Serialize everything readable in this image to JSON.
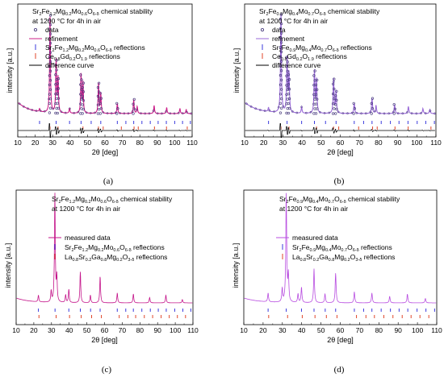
{
  "colors": {
    "data_marker": "#3c2e74",
    "refinement_line": "#cc1f8a",
    "refinement_line_b": "#9a6ad8",
    "difference_line": "#000000",
    "reflections_sfmo": "#3b3bdd",
    "reflections_second": "#e0462a",
    "measured_line_c": "#c4148a",
    "measured_line_d": "#b84de0"
  },
  "chart_data": [
    {
      "type": "line",
      "panel": "(a)",
      "title_parts": [
        "Sr",
        "2",
        "Fe",
        "1.2",
        "Mg",
        "0.2",
        "Mo",
        "0.6",
        "O",
        "6-δ",
        " chemical stability"
      ],
      "title_line2": "at 1200 °C for 4h in air",
      "xlabel": "2θ [deg]",
      "ylabel": "intensity [a.u.]",
      "xlim": [
        10,
        110
      ],
      "xticks": [
        "10",
        "20",
        "30",
        "40",
        "50",
        "60",
        "70",
        "80",
        "90",
        "100",
        "110"
      ],
      "legend": [
        {
          "kind": "marker",
          "label": "data"
        },
        {
          "kind": "line",
          "label": "refinement"
        },
        {
          "kind": "tick",
          "color": "blue",
          "parts": [
            "Sr",
            "2",
            "Fe",
            "1.2",
            "Mg",
            "0.2",
            "Mo",
            "0.6",
            "O",
            "6-δ",
            " reflections"
          ]
        },
        {
          "kind": "tick",
          "color": "red",
          "parts": [
            "Ce",
            "0.8",
            "Gd",
            "0.2",
            "O",
            "1.9",
            " reflections"
          ]
        },
        {
          "kind": "line",
          "label": "difference curve"
        }
      ],
      "peaks": [
        [
          22.5,
          0.03
        ],
        [
          28.5,
          0.96
        ],
        [
          32.0,
          0.52
        ],
        [
          33.1,
          0.34
        ],
        [
          39.7,
          0.05
        ],
        [
          46.3,
          0.38
        ],
        [
          47.4,
          0.3
        ],
        [
          56.3,
          0.3
        ],
        [
          57.6,
          0.2
        ],
        [
          67.1,
          0.1
        ],
        [
          76.5,
          0.14
        ],
        [
          78.5,
          0.07
        ],
        [
          88.2,
          0.08
        ],
        [
          95.4,
          0.06
        ],
        [
          103.0,
          0.05
        ],
        [
          106.6,
          0.04
        ]
      ],
      "reflections_blue": [
        22.5,
        32.0,
        39.7,
        46.3,
        52.1,
        57.6,
        67.1,
        72.0,
        76.5,
        81.2,
        86.0,
        90.5,
        95.2,
        100.0,
        104.5,
        109.0
      ],
      "reflections_red": [
        28.5,
        33.1,
        47.4,
        56.3,
        59.0,
        69.4,
        76.7,
        79.1,
        88.4,
        95.3,
        107.2
      ]
    },
    {
      "type": "line",
      "panel": "(b)",
      "title_parts": [
        "Sr",
        "2",
        "Fe",
        "0.9",
        "Mg",
        "0.4",
        "Mo",
        "0.7",
        "O",
        "6-δ",
        " chemical stability"
      ],
      "title_line2": "at 1200 °C for 4h in air",
      "xlabel": "2θ [deg]",
      "ylabel": "intensity [a.u.]",
      "xlim": [
        10,
        110
      ],
      "xticks": [
        "10",
        "20",
        "30",
        "40",
        "50",
        "60",
        "70",
        "80",
        "90",
        "100",
        "110"
      ],
      "legend": [
        {
          "kind": "marker",
          "label": "data"
        },
        {
          "kind": "line",
          "label": "refinement"
        },
        {
          "kind": "tick",
          "color": "blue",
          "parts": [
            "Sr",
            "2",
            "Fe",
            "0.9",
            "Mg",
            "0.4",
            "Mo",
            "0.7",
            "O",
            "6-δ",
            " reflections"
          ]
        },
        {
          "kind": "tick",
          "color": "red",
          "parts": [
            "Ce",
            "0.8",
            "Gd",
            "0.2",
            "O",
            "1.9",
            " reflections"
          ]
        },
        {
          "kind": "line",
          "label": "difference curve"
        }
      ],
      "peaks": [
        [
          22.5,
          0.04
        ],
        [
          29.0,
          0.97
        ],
        [
          32.2,
          0.55
        ],
        [
          33.2,
          0.38
        ],
        [
          39.8,
          0.06
        ],
        [
          46.5,
          0.42
        ],
        [
          47.6,
          0.33
        ],
        [
          56.5,
          0.34
        ],
        [
          57.8,
          0.22
        ],
        [
          67.3,
          0.1
        ],
        [
          76.6,
          0.15
        ],
        [
          78.7,
          0.08
        ],
        [
          88.4,
          0.09
        ],
        [
          95.6,
          0.07
        ],
        [
          103.2,
          0.05
        ],
        [
          106.8,
          0.04
        ]
      ],
      "reflections_blue": [
        22.5,
        32.2,
        39.8,
        46.5,
        52.3,
        57.8,
        67.3,
        72.2,
        76.6,
        81.4,
        86.2,
        90.7,
        95.4,
        100.2,
        104.7,
        109.2
      ],
      "reflections_red": [
        29.0,
        33.2,
        47.6,
        56.5,
        59.2,
        69.6,
        76.9,
        79.3,
        88.6,
        95.5,
        107.4
      ]
    },
    {
      "type": "line",
      "panel": "(c)",
      "title_parts": [
        "Sr",
        "2",
        "Fe",
        "1.2",
        "Mg",
        "0.2",
        "Mo",
        "0.6",
        "O",
        "6-δ",
        " chemical stability"
      ],
      "title_line2": "at 1200 °C for 4h in air",
      "xlabel": "2θ [deg]",
      "ylabel": "intensity [a.u.]",
      "xlim": [
        10,
        110
      ],
      "xticks": [
        "10",
        "20",
        "30",
        "40",
        "50",
        "60",
        "70",
        "80",
        "90",
        "100",
        "110"
      ],
      "legend": [
        {
          "kind": "line",
          "label": "measured data"
        },
        {
          "kind": "tick",
          "color": "blue",
          "parts": [
            "Sr",
            "2",
            "Fe",
            "1.2",
            "Mg",
            "0.2",
            "Mo",
            "0.6",
            "O",
            "6-δ",
            " reflections"
          ]
        },
        {
          "kind": "tick",
          "color": "red",
          "parts": [
            "La",
            "0.8",
            "Sr",
            "0.2",
            "Ga",
            "0.8",
            "Mg",
            "0.2",
            "O",
            "3-δ",
            " reflections"
          ]
        }
      ],
      "peaks": [
        [
          22.6,
          0.06
        ],
        [
          29.8,
          0.1
        ],
        [
          31.9,
          0.98
        ],
        [
          33.0,
          0.22
        ],
        [
          38.0,
          0.07
        ],
        [
          39.8,
          0.12
        ],
        [
          46.3,
          0.28
        ],
        [
          52.0,
          0.07
        ],
        [
          57.5,
          0.24
        ],
        [
          67.2,
          0.09
        ],
        [
          76.3,
          0.08
        ],
        [
          85.5,
          0.05
        ],
        [
          94.7,
          0.07
        ],
        [
          104.0,
          0.03
        ]
      ],
      "reflections_blue": [
        22.6,
        32.0,
        39.8,
        46.3,
        52.1,
        57.5,
        67.2,
        72.0,
        76.3,
        81.1,
        85.9,
        90.4,
        94.9,
        99.7,
        104.3,
        108.8
      ],
      "reflections_red": [
        22.9,
        32.6,
        40.2,
        46.8,
        52.7,
        58.2,
        68.3,
        73.2,
        77.6,
        82.5,
        87.2,
        92.0,
        96.6,
        101.2,
        105.8
      ]
    },
    {
      "type": "line",
      "panel": "(d)",
      "title_parts": [
        "Sr",
        "2",
        "Fe",
        "0.9",
        "Mg",
        "0.4",
        "Mo",
        "0.7",
        "O",
        "6-δ",
        " chemical stability"
      ],
      "title_line2": "at 1200 °C for 4h in air",
      "xlabel": "2θ [deg]",
      "ylabel": "intensity [a.u.]",
      "xlim": [
        10,
        110
      ],
      "xticks": [
        "10",
        "20",
        "30",
        "40",
        "50",
        "60",
        "70",
        "80",
        "90",
        "100",
        "110"
      ],
      "legend": [
        {
          "kind": "line",
          "label": "measured data"
        },
        {
          "kind": "tick",
          "color": "blue",
          "parts": [
            "Sr",
            "2",
            "Fe",
            "0.9",
            "Mg",
            "0.4",
            "Mo",
            "0.7",
            "O",
            "6-δ",
            " reflections"
          ]
        },
        {
          "kind": "tick",
          "color": "red",
          "parts": [
            "La",
            "0.8",
            "Sr",
            "0.2",
            "Ga",
            "0.8",
            "Mg",
            "0.2",
            "O",
            "3-δ",
            " reflections"
          ]
        }
      ],
      "peaks": [
        [
          22.6,
          0.08
        ],
        [
          29.9,
          0.12
        ],
        [
          32.0,
          0.98
        ],
        [
          33.1,
          0.24
        ],
        [
          38.1,
          0.08
        ],
        [
          39.9,
          0.14
        ],
        [
          46.4,
          0.31
        ],
        [
          52.1,
          0.08
        ],
        [
          57.6,
          0.27
        ],
        [
          67.3,
          0.1
        ],
        [
          76.4,
          0.09
        ],
        [
          85.6,
          0.06
        ],
        [
          94.8,
          0.08
        ],
        [
          104.1,
          0.04
        ]
      ],
      "reflections_blue": [
        22.6,
        32.0,
        39.9,
        46.4,
        52.2,
        57.6,
        67.3,
        72.1,
        76.4,
        81.2,
        86.0,
        90.5,
        95.0,
        99.8,
        104.4,
        108.9
      ],
      "reflections_red": [
        22.9,
        32.7,
        40.3,
        46.9,
        52.8,
        58.3,
        68.4,
        73.3,
        77.7,
        82.6,
        87.3,
        92.1,
        96.7,
        101.3,
        105.9
      ]
    }
  ]
}
